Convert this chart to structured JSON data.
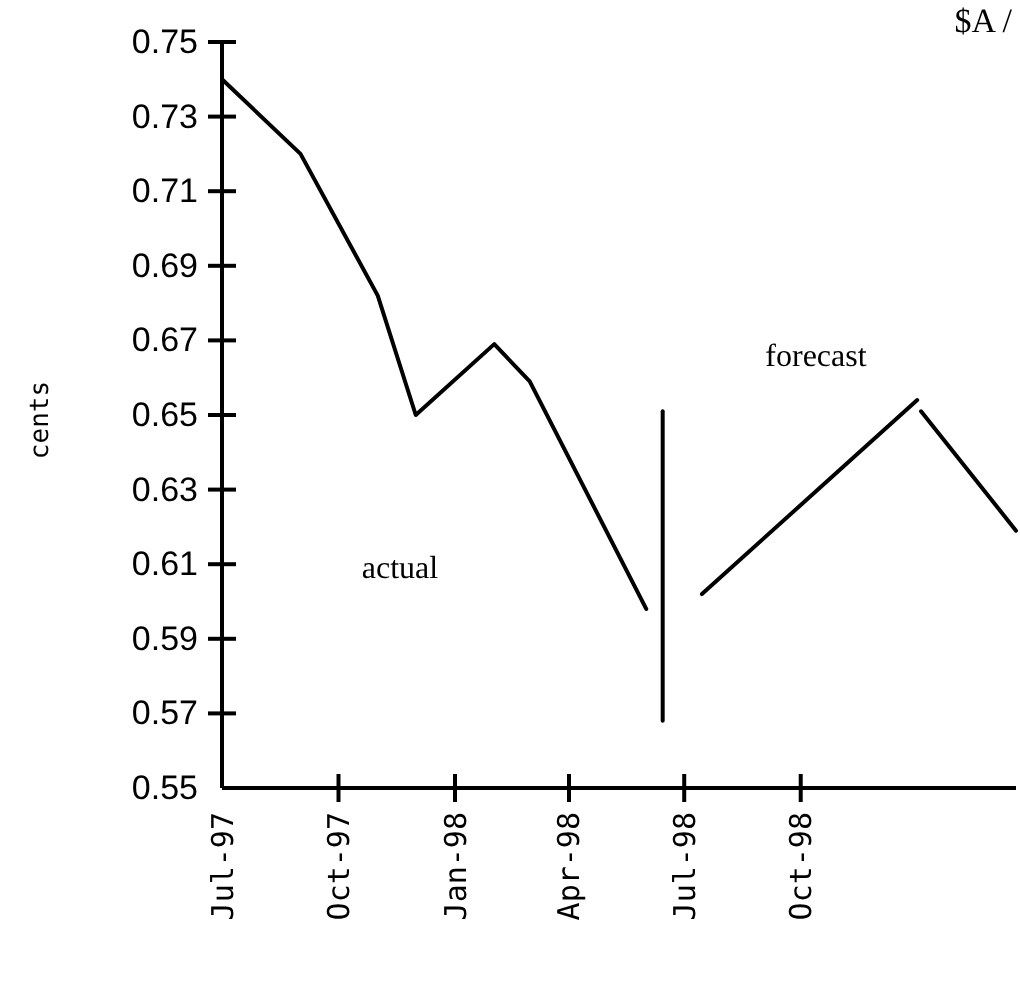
{
  "chart_data": {
    "type": "line",
    "title": "$A /",
    "ylabel": "cents",
    "xlim": [
      "1997-07-01",
      "1999-03-20"
    ],
    "xticks": [
      {
        "value": "1997-07-01",
        "label": "Jul-97"
      },
      {
        "value": "1997-10-01",
        "label": "Oct-97"
      },
      {
        "value": "1998-01-01",
        "label": "Jan-98"
      },
      {
        "value": "1998-04-01",
        "label": "Apr-98"
      },
      {
        "value": "1998-07-01",
        "label": "Jul-98"
      },
      {
        "value": "1998-10-01",
        "label": "Oct-98"
      }
    ],
    "ylim": [
      0.55,
      0.75
    ],
    "yticks": [
      0.55,
      0.57,
      0.59,
      0.61,
      0.63,
      0.65,
      0.67,
      0.69,
      0.71,
      0.73,
      0.75
    ],
    "series": [
      {
        "color": "#000000",
        "x": [
          "1997-07-01",
          "1997-09-01",
          "1997-11-01",
          "1997-12-01",
          "1998-02-01",
          "1998-03-01",
          "1998-06-01"
        ],
        "values": [
          0.74,
          0.72,
          0.682,
          0.65,
          0.669,
          0.659,
          0.598
        ]
      },
      {
        "color": "#000000",
        "x": [
          "1998-06-14",
          "1998-06-14"
        ],
        "values": [
          0.651,
          0.568
        ]
      },
      {
        "color": "#000000",
        "x": [
          "1998-07-15",
          "1999-01-01"
        ],
        "values": [
          0.602,
          0.654
        ]
      },
      {
        "color": "#000000",
        "x": [
          "1999-01-04",
          "1999-03-20"
        ],
        "values": [
          0.651,
          0.619
        ]
      }
    ],
    "annotations": [
      "actual",
      "forecast"
    ],
    "grid": false
  }
}
